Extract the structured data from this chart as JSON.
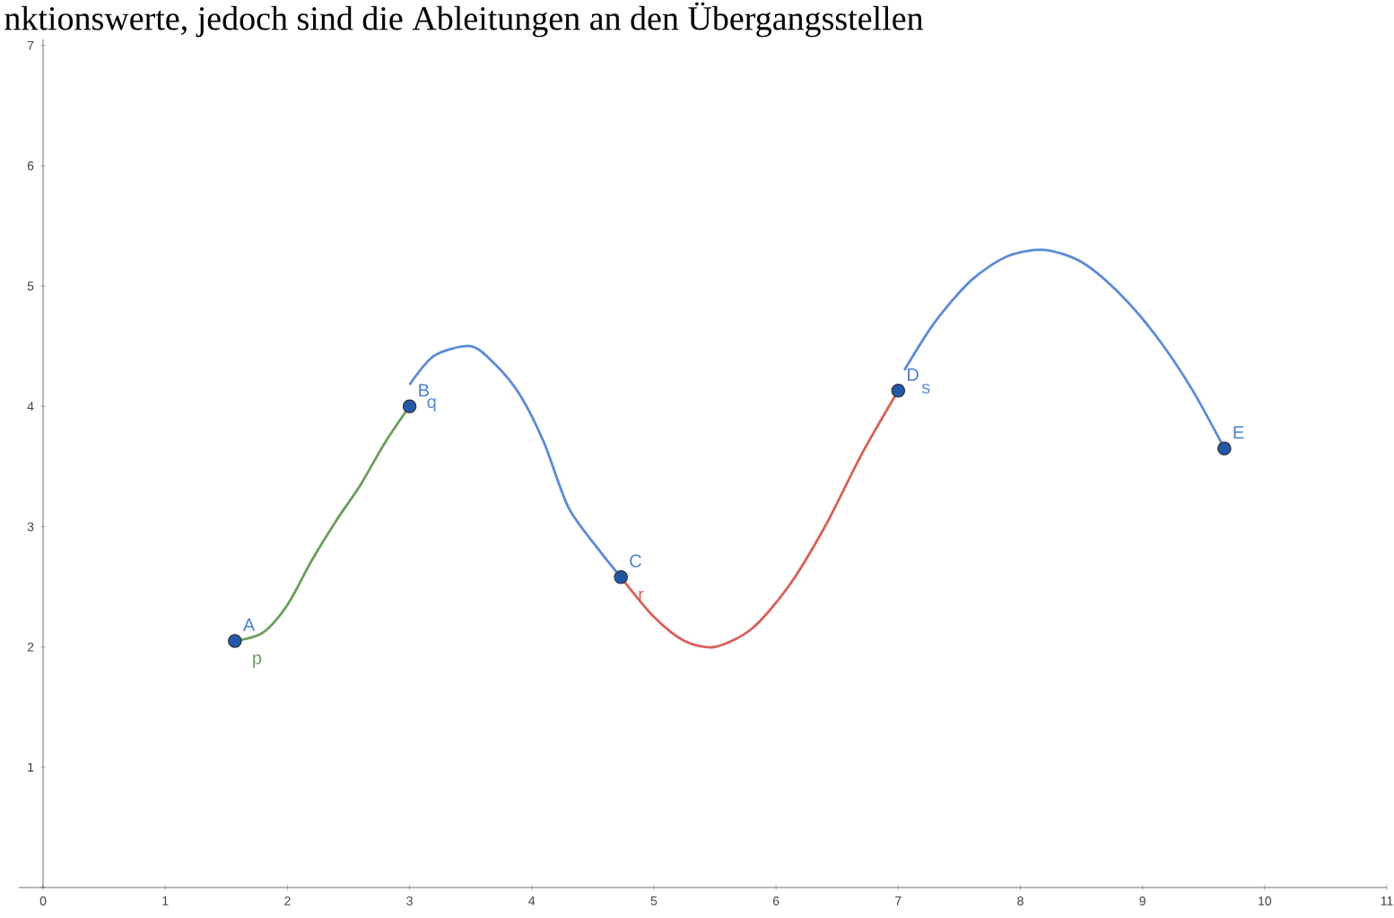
{
  "chart_data": {
    "type": "line",
    "xlim": [
      -0.2,
      11
    ],
    "ylim": [
      0,
      7.05
    ],
    "xticks": [
      0,
      1,
      2,
      3,
      4,
      5,
      6,
      7,
      8,
      9,
      10,
      11
    ],
    "yticks": [
      {
        "value": 0,
        "label": null
      },
      1,
      2,
      3,
      4,
      5,
      6,
      7
    ],
    "grid": false,
    "annotations": [
      "nktionswerte, jedoch sind die Ableitungen an den Übergangsstellen",
      {
        "text": "A",
        "x": 1.57,
        "y": 2.05
      },
      {
        "text": "B",
        "x": 3,
        "y": 4
      },
      {
        "text": "C",
        "x": 4.73,
        "y": 2.58
      },
      {
        "text": "D",
        "x": 7,
        "y": 4.13
      },
      {
        "text": "E",
        "x": 9.67,
        "y": 3.65
      }
    ],
    "series": [
      {
        "name": "p",
        "color": "#6a9e5e",
        "x": [
          1.57,
          1.8,
          2.0,
          2.2,
          2.4,
          2.6,
          2.8,
          3.0
        ],
        "values": [
          2.05,
          2.12,
          2.35,
          2.72,
          3.05,
          3.35,
          3.7,
          4.0
        ]
      },
      {
        "name": "q",
        "color": "#5b8bd6",
        "x": [
          3.0,
          3.2,
          3.5,
          3.7,
          3.9,
          4.1,
          4.3,
          4.54,
          4.73
        ],
        "values": [
          4.18,
          4.42,
          4.5,
          4.35,
          4.1,
          3.7,
          3.16,
          2.82,
          2.58
        ]
      },
      {
        "name": "r",
        "color": "#d9605a",
        "x": [
          4.73,
          5.0,
          5.25,
          5.5,
          5.8,
          6.1,
          6.4,
          6.7,
          7.0
        ],
        "values": [
          2.58,
          2.25,
          2.05,
          2.0,
          2.15,
          2.5,
          3.0,
          3.6,
          4.13
        ]
      },
      {
        "name": "s",
        "color": "#5b8bd6",
        "x": [
          7.05,
          7.3,
          7.6,
          7.9,
          8.2,
          8.5,
          8.8,
          9.1,
          9.4,
          9.67
        ],
        "values": [
          4.3,
          4.7,
          5.05,
          5.25,
          5.3,
          5.2,
          4.95,
          4.6,
          4.15,
          3.65
        ]
      },
      {
        "type": "scatter",
        "color": "#2358a8",
        "x": [
          1.57,
          3,
          4.73,
          7,
          9.67
        ],
        "values": [
          2.05,
          4,
          2.58,
          4.13,
          3.65
        ]
      }
    ]
  }
}
